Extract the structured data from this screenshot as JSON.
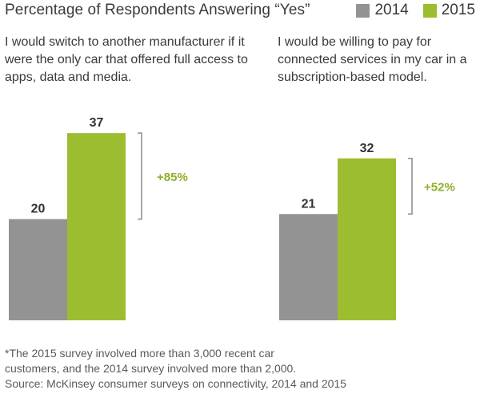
{
  "title": "Percentage of Respondents Answering “Yes”",
  "legend": [
    {
      "label": "2014",
      "color": "#939393"
    },
    {
      "label": "2015",
      "color": "#9dbd31"
    }
  ],
  "colors": {
    "series_2014": "#939393",
    "series_2015": "#9dbd31",
    "bracket": "#8c8c8c",
    "change": "#8fae2b",
    "value_label": "#333333"
  },
  "questions": [
    "I would switch to another manufacturer if it were the only car that offered full access to apps, data and media.",
    "I would be willing to pay for connected services in my car in a subscription-based model."
  ],
  "chart_data": [
    {
      "type": "bar",
      "title": "I would switch to another manufacturer if it were the only car that offered full access to apps, data and media.",
      "categories": [
        "2014",
        "2015"
      ],
      "values": [
        20,
        37
      ],
      "value_labels": [
        "20",
        "37"
      ],
      "change_label": "+85%",
      "ylim": [
        0,
        40
      ],
      "grid": false
    },
    {
      "type": "bar",
      "title": "I would be willing to pay for connected services in my car in a subscription-based model.",
      "categories": [
        "2014",
        "2015"
      ],
      "values": [
        21,
        32
      ],
      "value_labels": [
        "21",
        "32"
      ],
      "change_label": "+52%",
      "ylim": [
        0,
        40
      ],
      "grid": false
    }
  ],
  "footnote": {
    "line1": "*The 2015 survey involved more than 3,000 recent car",
    "line2": "customers, and the 2014 survey involved more than 2,000.",
    "line3": "Source: McKinsey consumer surveys on connectivity, 2014 and 2015"
  }
}
